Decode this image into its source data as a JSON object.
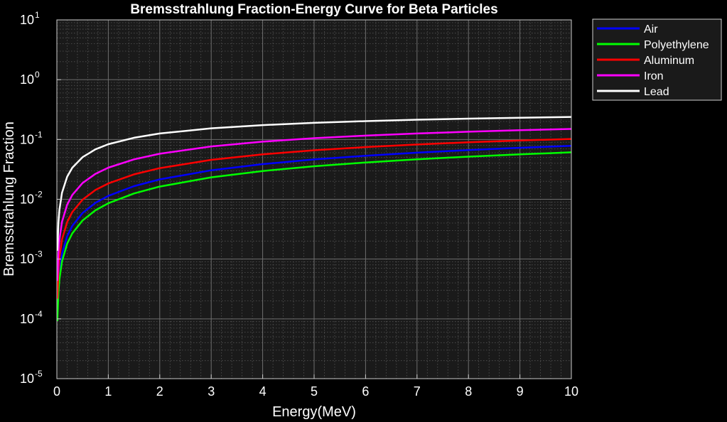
{
  "chart_data": {
    "type": "line",
    "title": "Bremsstrahlung Fraction-Energy Curve for Beta Particles",
    "xlabel": "Energy(MeV)",
    "ylabel": "Bremsstrahlung Fraction",
    "xlim": [
      0,
      10
    ],
    "ylim": [
      1e-05,
      10
    ],
    "yscale": "log",
    "grid": true,
    "minor_grid": true,
    "legend_position": "outside-top-right",
    "background_color": "#000000",
    "axes_color": "#1a1a1a",
    "x_ticks": [
      "0",
      "1",
      "2",
      "3",
      "4",
      "5",
      "6",
      "7",
      "8",
      "9",
      "10"
    ],
    "y_ticks": [
      {
        "base": "10",
        "exp": "-5"
      },
      {
        "base": "10",
        "exp": "-4"
      },
      {
        "base": "10",
        "exp": "-3"
      },
      {
        "base": "10",
        "exp": "-2"
      },
      {
        "base": "10",
        "exp": "-1"
      },
      {
        "base": "10",
        "exp": "0"
      },
      {
        "base": "10",
        "exp": "1"
      }
    ],
    "x": [
      0.01,
      0.03,
      0.05,
      0.1,
      0.2,
      0.3,
      0.5,
      0.75,
      1,
      1.5,
      2,
      3,
      4,
      5,
      6,
      7,
      8,
      9,
      10
    ],
    "series": [
      {
        "name": "Air",
        "color": "#0000ff",
        "values": [
          0.000128,
          0.000369,
          0.000613,
          0.00122,
          0.00241,
          0.00359,
          0.0059,
          0.00871,
          0.0114,
          0.0166,
          0.0215,
          0.0305,
          0.0387,
          0.0464,
          0.0535,
          0.0602,
          0.0666,
          0.0726,
          0.0784
        ]
      },
      {
        "name": "Polyethylene",
        "color": "#00ff00",
        "values": [
          9.2e-05,
          0.000276,
          0.000458,
          0.000913,
          0.00181,
          0.00269,
          0.00443,
          0.00654,
          0.00859,
          0.0125,
          0.0163,
          0.0233,
          0.0297,
          0.0357,
          0.0413,
          0.0466,
          0.0516,
          0.0564,
          0.061
        ]
      },
      {
        "name": "Aluminum",
        "color": "#ff0000",
        "values": [
          0.000217,
          0.000647,
          0.00107,
          0.00212,
          0.00416,
          0.00611,
          0.00986,
          0.0143,
          0.0184,
          0.0261,
          0.0331,
          0.0456,
          0.0564,
          0.066,
          0.0747,
          0.0825,
          0.0897,
          0.0963,
          0.102
        ]
      },
      {
        "name": "Iron",
        "color": "#ff00ff",
        "values": [
          0.000433,
          0.00129,
          0.00212,
          0.00418,
          0.00809,
          0.0118,
          0.0187,
          0.0266,
          0.0338,
          0.0465,
          0.0577,
          0.0765,
          0.092,
          0.105,
          0.116,
          0.126,
          0.135,
          0.143,
          0.15
        ]
      },
      {
        "name": "Lead",
        "color": "#ffffff",
        "values": [
          0.00138,
          0.00407,
          0.00666,
          0.0128,
          0.0239,
          0.0337,
          0.0506,
          0.0684,
          0.0833,
          0.107,
          0.126,
          0.154,
          0.174,
          0.19,
          0.203,
          0.214,
          0.223,
          0.231,
          0.238
        ]
      }
    ]
  }
}
